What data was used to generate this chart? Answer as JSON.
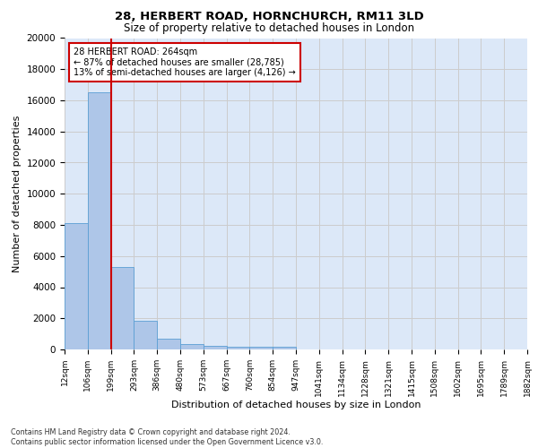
{
  "title1": "28, HERBERT ROAD, HORNCHURCH, RM11 3LD",
  "title2": "Size of property relative to detached houses in London",
  "xlabel": "Distribution of detached houses by size in London",
  "ylabel": "Number of detached properties",
  "footnote": "Contains HM Land Registry data © Crown copyright and database right 2024.\nContains public sector information licensed under the Open Government Licence v3.0.",
  "bin_labels": [
    "12sqm",
    "106sqm",
    "199sqm",
    "293sqm",
    "386sqm",
    "480sqm",
    "573sqm",
    "667sqm",
    "760sqm",
    "854sqm",
    "947sqm",
    "1041sqm",
    "1134sqm",
    "1228sqm",
    "1321sqm",
    "1415sqm",
    "1508sqm",
    "1602sqm",
    "1695sqm",
    "1789sqm",
    "1882sqm"
  ],
  "bar_heights": [
    8100,
    16500,
    5300,
    1850,
    700,
    320,
    250,
    200,
    175,
    160,
    0,
    0,
    0,
    0,
    0,
    0,
    0,
    0,
    0,
    0
  ],
  "bar_color": "#aec6e8",
  "bar_edge_color": "#5a9fd4",
  "vline_x": 2,
  "vline_color": "#cc0000",
  "annotation_box_text": "28 HERBERT ROAD: 264sqm\n← 87% of detached houses are smaller (28,785)\n13% of semi-detached houses are larger (4,126) →",
  "annotation_box_color": "#cc0000",
  "ylim": [
    0,
    20000
  ],
  "yticks": [
    0,
    2000,
    4000,
    6000,
    8000,
    10000,
    12000,
    14000,
    16000,
    18000,
    20000
  ],
  "grid_color": "#cccccc",
  "bg_color": "#dce8f8",
  "title1_fontsize": 9.5,
  "title2_fontsize": 8.5,
  "xlabel_fontsize": 8,
  "ylabel_fontsize": 8
}
